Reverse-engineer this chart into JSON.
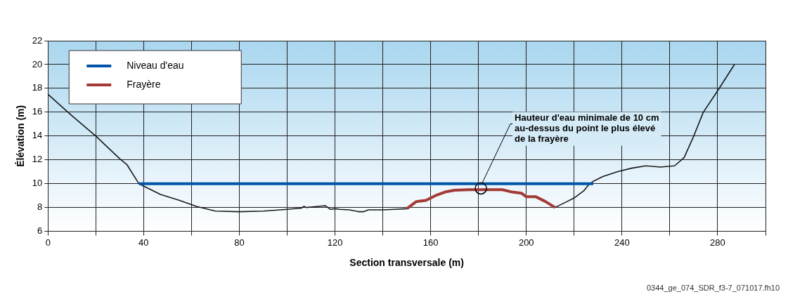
{
  "chart_data": {
    "type": "line",
    "xlabel": "Section transversale (m)",
    "ylabel": "Élévation (m)",
    "xlim": [
      0,
      300
    ],
    "ylim": [
      6,
      22
    ],
    "xticks": [
      0,
      {
        "value": 20,
        "label": null
      },
      40,
      {
        "value": 60,
        "label": null
      },
      80,
      {
        "value": 100,
        "label": null
      },
      120,
      {
        "value": 140,
        "label": null
      },
      160,
      {
        "value": 180,
        "label": null
      },
      200,
      {
        "value": 220,
        "label": null
      },
      240,
      {
        "value": 260,
        "label": null
      },
      280,
      {
        "value": 300,
        "label": null
      }
    ],
    "yticks": [
      6,
      8,
      10,
      12,
      14,
      16,
      18,
      20,
      22
    ],
    "grid": true,
    "legend": "top left",
    "marker": "none",
    "line_style": "solid",
    "series": [
      {
        "color": "#1a1a1a",
        "x": [
          0,
          10,
          20,
          30,
          33,
          38,
          42,
          47,
          55,
          62,
          70,
          80,
          90,
          100,
          106,
          107,
          108,
          113,
          116,
          118,
          120,
          122,
          126,
          130,
          132,
          134,
          140,
          145,
          150,
          181,
          212,
          216,
          220,
          224,
          226,
          228,
          232,
          238,
          244,
          250,
          256,
          262,
          266,
          270,
          274,
          280,
          287
        ],
        "values": [
          17.5,
          15.7,
          14,
          12.1,
          11.6,
          10,
          9.6,
          9.1,
          8.6,
          8.1,
          7.7,
          7.65,
          7.7,
          7.85,
          7.95,
          8.1,
          8,
          8.1,
          8.15,
          7.85,
          7.9,
          7.85,
          7.8,
          7.65,
          7.65,
          7.8,
          7.8,
          7.85,
          7.9,
          null,
          8,
          8.4,
          8.8,
          9.4,
          9.9,
          10.2,
          10.6,
          11,
          11.3,
          11.5,
          11.4,
          11.5,
          12.2,
          14,
          16,
          17.8,
          20
        ]
      },
      {
        "name": "Niveau d'eau",
        "color": "#0055a8",
        "x": [
          38,
          228
        ],
        "values": [
          10,
          10
        ]
      },
      {
        "name": "Frayère",
        "color": "#a33a36",
        "x": [
          150,
          154,
          158,
          162,
          166,
          170,
          176,
          181,
          190,
          194,
          198,
          200,
          204,
          208,
          212
        ],
        "values": [
          7.9,
          8.5,
          8.6,
          9,
          9.3,
          9.45,
          9.5,
          9.5,
          9.5,
          9.3,
          9.2,
          8.9,
          8.9,
          8.5,
          8
        ]
      }
    ],
    "annotations": [
      {
        "text": "Hauteur d'eau minimale de 10 cm\nau-dessus du point le plus élevé\nde la frayère",
        "x": 181,
        "y": 9.6
      },
      "0344_ge_074_SDR_f3-7_071017.fh10"
    ]
  }
}
